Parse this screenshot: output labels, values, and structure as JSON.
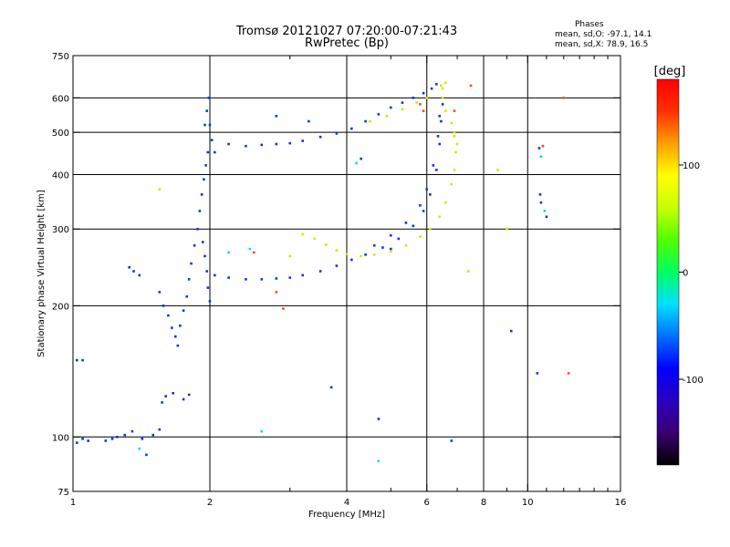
{
  "chart_data": {
    "type": "scatter",
    "title": "Tromsø 20121027 07:20:00-07:21:43",
    "subtitle": "RwPretec (Bp)",
    "xlabel": "Frequency [MHz]",
    "ylabel": "Stationary phase Virtual Height [km]",
    "x_scale": "log2",
    "y_scale": "log",
    "xlim": [
      1,
      16
    ],
    "ylim": [
      75,
      750
    ],
    "x_ticks": [
      1,
      2,
      4,
      6,
      8,
      10,
      16
    ],
    "x_ticklabels": [
      "1",
      "2",
      "4",
      "6",
      "8",
      "10",
      "16"
    ],
    "x_minor_ticks": [
      3,
      5,
      7,
      9,
      11,
      12,
      13,
      14,
      15
    ],
    "x_gridlines": [
      2,
      4,
      6,
      8,
      10
    ],
    "y_ticks": [
      75,
      100,
      200,
      300,
      400,
      500,
      600,
      750
    ],
    "y_ticklabels": [
      "75",
      "100",
      "200",
      "300",
      "400",
      "500",
      "600",
      "750"
    ],
    "y_gridlines": [
      100,
      200,
      300,
      400,
      500,
      600
    ],
    "grid": true,
    "phase_panel": {
      "title": "Phases",
      "line_o": "mean, sd,O: -97.1, 14.1",
      "line_x": "mean, sd,X:  78.9, 16.5"
    },
    "colorbar": {
      "label": "[deg]",
      "range": [
        -180,
        180
      ],
      "ticks": [
        100,
        0,
        -100
      ],
      "ticklabels": [
        "100",
        "0",
        "-100"
      ],
      "colormap": [
        "#000000",
        "#3a0070",
        "#2a00c0",
        "#0000ff",
        "#0070ff",
        "#00e0ff",
        "#00ff60",
        "#50ff00",
        "#c8ff00",
        "#ffff00",
        "#ffa000",
        "#ff3000",
        "#ff0000"
      ]
    },
    "series": [
      {
        "mode": "O",
        "phase": -100,
        "color": "#1433e6",
        "points": [
          [
            1.02,
            97
          ],
          [
            1.05,
            99
          ],
          [
            1.08,
            98
          ],
          [
            1.18,
            98
          ],
          [
            1.22,
            99
          ],
          [
            1.25,
            100
          ],
          [
            1.3,
            101
          ],
          [
            1.35,
            103
          ],
          [
            1.42,
            99
          ],
          [
            1.5,
            101
          ],
          [
            1.55,
            104
          ],
          [
            1.57,
            120
          ],
          [
            1.6,
            124
          ],
          [
            1.66,
            126
          ],
          [
            1.75,
            122
          ],
          [
            1.8,
            125
          ],
          [
            1.02,
            150
          ],
          [
            1.05,
            150
          ],
          [
            1.33,
            245
          ],
          [
            1.36,
            240
          ],
          [
            1.4,
            235
          ],
          [
            1.55,
            215
          ],
          [
            1.58,
            200
          ],
          [
            1.62,
            190
          ],
          [
            1.65,
            178
          ],
          [
            1.68,
            170
          ],
          [
            1.7,
            162
          ],
          [
            1.72,
            180
          ],
          [
            1.75,
            195
          ],
          [
            1.78,
            210
          ],
          [
            1.8,
            230
          ],
          [
            1.82,
            250
          ],
          [
            1.85,
            275
          ],
          [
            1.88,
            300
          ],
          [
            1.9,
            330
          ],
          [
            1.92,
            360
          ],
          [
            1.94,
            390
          ],
          [
            1.96,
            420
          ],
          [
            1.98,
            450
          ],
          [
            1.95,
            520
          ],
          [
            1.97,
            560
          ],
          [
            1.99,
            600
          ],
          [
            2.0,
            520
          ],
          [
            2.02,
            480
          ],
          [
            2.05,
            450
          ],
          [
            1.93,
            280
          ],
          [
            1.95,
            260
          ],
          [
            1.97,
            240
          ],
          [
            1.98,
            220
          ],
          [
            2.0,
            205
          ],
          [
            2.2,
            470
          ],
          [
            2.4,
            465
          ],
          [
            2.6,
            468
          ],
          [
            2.8,
            470
          ],
          [
            3.0,
            472
          ],
          [
            3.2,
            478
          ],
          [
            3.5,
            488
          ],
          [
            3.8,
            497
          ],
          [
            4.1,
            510
          ],
          [
            4.4,
            530
          ],
          [
            4.7,
            550
          ],
          [
            5.0,
            570
          ],
          [
            5.3,
            585
          ],
          [
            5.6,
            600
          ],
          [
            5.9,
            615
          ],
          [
            6.15,
            630
          ],
          [
            6.3,
            645
          ],
          [
            2.05,
            235
          ],
          [
            2.2,
            232
          ],
          [
            2.4,
            230
          ],
          [
            2.6,
            230
          ],
          [
            2.8,
            231
          ],
          [
            3.0,
            232
          ],
          [
            3.2,
            235
          ],
          [
            3.5,
            240
          ],
          [
            3.8,
            247
          ],
          [
            4.1,
            255
          ],
          [
            4.4,
            262
          ],
          [
            4.8,
            272
          ],
          [
            5.2,
            285
          ],
          [
            5.6,
            305
          ],
          [
            5.9,
            330
          ],
          [
            6.1,
            360
          ],
          [
            6.3,
            410
          ],
          [
            6.4,
            470
          ],
          [
            6.45,
            530
          ],
          [
            6.5,
            580
          ],
          [
            4.6,
            275
          ],
          [
            5.0,
            290
          ],
          [
            5.4,
            310
          ],
          [
            5.8,
            340
          ],
          [
            6.0,
            370
          ],
          [
            6.2,
            420
          ],
          [
            6.35,
            490
          ],
          [
            6.4,
            545
          ],
          [
            2.8,
            545
          ],
          [
            3.3,
            530
          ],
          [
            3.7,
            130
          ],
          [
            4.3,
            435
          ],
          [
            4.7,
            110
          ],
          [
            5.0,
            270
          ],
          [
            10.5,
            140
          ],
          [
            10.6,
            460
          ],
          [
            10.65,
            360
          ],
          [
            10.7,
            345
          ],
          [
            11.0,
            320
          ],
          [
            9.2,
            175
          ],
          [
            1.45,
            91
          ],
          [
            6.8,
            98
          ]
        ]
      },
      {
        "mode": "X",
        "phase": 80,
        "color": "#c8ee00",
        "points": [
          [
            3.2,
            292
          ],
          [
            3.4,
            285
          ],
          [
            3.6,
            276
          ],
          [
            3.8,
            268
          ],
          [
            4.0,
            263
          ],
          [
            4.3,
            260
          ],
          [
            4.6,
            262
          ],
          [
            5.0,
            266
          ],
          [
            5.4,
            275
          ],
          [
            5.8,
            288
          ],
          [
            6.1,
            300
          ],
          [
            6.4,
            320
          ],
          [
            6.6,
            345
          ],
          [
            6.8,
            380
          ],
          [
            6.9,
            410
          ],
          [
            6.95,
            450
          ],
          [
            6.9,
            490
          ],
          [
            6.8,
            525
          ],
          [
            6.6,
            560
          ],
          [
            6.5,
            600
          ],
          [
            6.45,
            640
          ],
          [
            6.6,
            650
          ],
          [
            6.5,
            630
          ],
          [
            6.9,
            500
          ],
          [
            7.0,
            470
          ],
          [
            4.5,
            530
          ],
          [
            4.9,
            545
          ],
          [
            5.3,
            565
          ],
          [
            5.7,
            585
          ],
          [
            6.0,
            600
          ],
          [
            1.55,
            370
          ],
          [
            3.0,
            260
          ],
          [
            7.4,
            240
          ],
          [
            8.6,
            410
          ],
          [
            9.0,
            300
          ]
        ]
      },
      {
        "mode": "other",
        "phase": 150,
        "color": "#ff5000",
        "points": [
          [
            5.8,
            580
          ],
          [
            5.9,
            560
          ],
          [
            6.9,
            560
          ],
          [
            7.5,
            640
          ],
          [
            10.8,
            465
          ],
          [
            12.0,
            600
          ],
          [
            12.3,
            140
          ],
          [
            2.8,
            215
          ],
          [
            2.9,
            197
          ],
          [
            2.5,
            265
          ]
        ]
      },
      {
        "mode": "other",
        "phase": 20,
        "color": "#00e0e0",
        "points": [
          [
            4.2,
            425
          ],
          [
            4.7,
            88
          ],
          [
            1.4,
            94
          ],
          [
            10.7,
            440
          ],
          [
            10.9,
            330
          ],
          [
            2.45,
            270
          ],
          [
            2.6,
            103
          ],
          [
            2.2,
            265
          ]
        ]
      }
    ]
  }
}
